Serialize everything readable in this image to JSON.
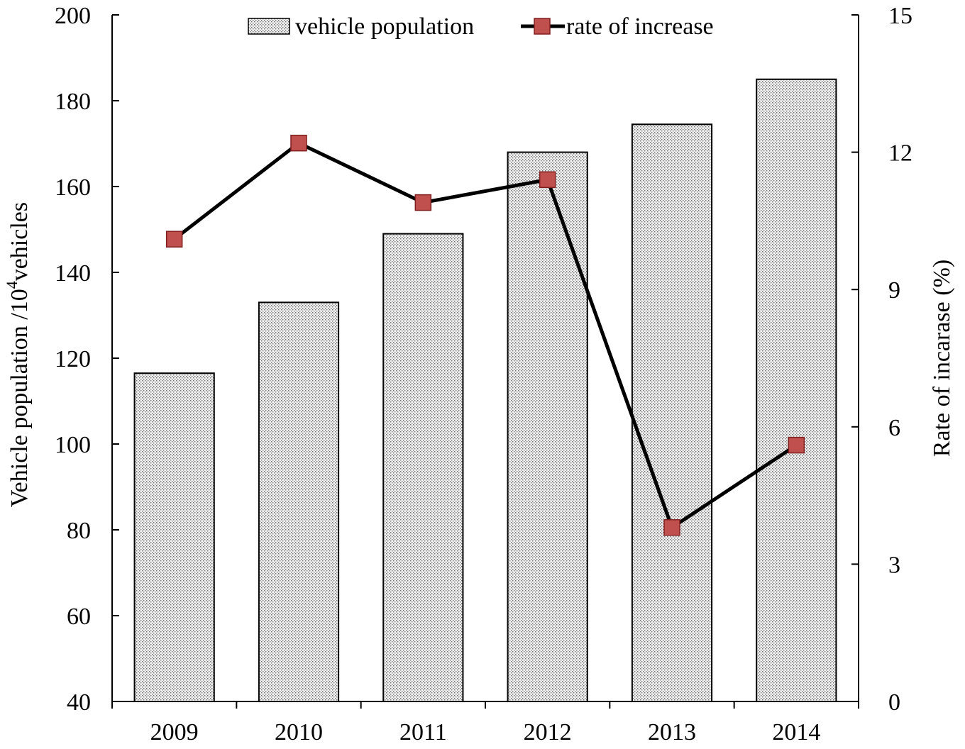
{
  "chart_data": {
    "type": "bar+line",
    "categories": [
      "2009",
      "2010",
      "2011",
      "2012",
      "2013",
      "2014"
    ],
    "series": [
      {
        "name": "vehicle population",
        "type": "bar",
        "axis": "left",
        "values": [
          116.5,
          133,
          149,
          168,
          174.5,
          185
        ]
      },
      {
        "name": "rate of increase",
        "type": "line",
        "axis": "right",
        "values": [
          10.1,
          12.2,
          10.9,
          11.4,
          3.8,
          5.6
        ]
      }
    ],
    "y_left": {
      "label_main": "Vehicle population /10",
      "label_sup": "4",
      "label_tail": "vehicles",
      "range": [
        40,
        200
      ],
      "ticks": [
        "40",
        "60",
        "80",
        "100",
        "120",
        "140",
        "160",
        "180",
        "200"
      ]
    },
    "y_right": {
      "label": "Rate of incarase (%)",
      "range": [
        0,
        15
      ],
      "ticks": [
        "0",
        "3",
        "6",
        "9",
        "12",
        "15"
      ]
    },
    "legend_position": "top-center",
    "grid": false,
    "colors": {
      "bar_fill_pattern": "#7f7f7f",
      "bar_stroke": "#000000",
      "line": "#000000",
      "marker_fill": "#c0504d",
      "marker_stroke": "#7f1f1f"
    }
  }
}
